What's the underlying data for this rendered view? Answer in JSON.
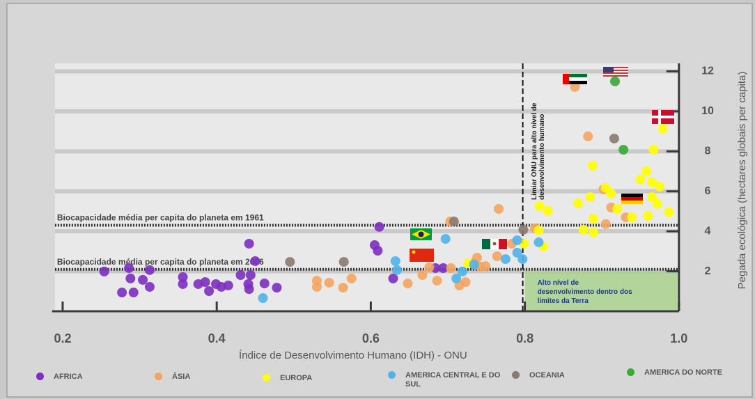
{
  "chart_data": {
    "type": "scatter",
    "xlabel": "Índice de Desenvolvimento Humano (IDH) - ONU",
    "ylabel": "Pegada ecológica (hectares globais per capita)",
    "xlim": [
      0.19,
      1.0
    ],
    "ylim": [
      0,
      12.4
    ],
    "xticks": [
      0.2,
      0.4,
      0.6,
      0.8,
      {
        "value": 1,
        "label": "1.0"
      }
    ],
    "yticks": [
      2,
      4,
      6,
      8,
      10,
      12
    ],
    "y_axis_side": "right",
    "reference_lines": [
      {
        "value": 4.3,
        "label": "Biocapacidade média per capita do planeta em 1961"
      },
      {
        "value": 2.1,
        "label": "Biocapacidade média per capita do planeta em 2006"
      }
    ],
    "threshold": {
      "value": 0.8,
      "label": "Limiar ONU para alto nível de desenvolvimento humano"
    },
    "highlight_box": {
      "label": "Alto nível de desenvolvimento dentro dos limites da Terra",
      "xlim": [
        0.8,
        1.0
      ],
      "ylim": [
        0,
        2
      ],
      "color": "#a9d18e"
    },
    "series": [
      {
        "name": "AFRICA",
        "color": "#7d2fc0",
        "x": [
          0.254,
          0.286,
          0.313,
          0.288,
          0.304,
          0.277,
          0.292,
          0.313,
          0.356,
          0.356,
          0.376,
          0.385,
          0.39,
          0.399,
          0.406,
          0.415,
          0.431,
          0.444,
          0.441,
          0.442,
          0.462,
          0.478,
          0.442,
          0.45,
          0.611,
          0.605,
          0.609,
          0.629,
          0.684,
          0.694
        ],
        "values": [
          1.99,
          2.16,
          2.06,
          1.64,
          1.57,
          0.94,
          0.94,
          1.22,
          1.71,
          1.36,
          1.36,
          1.46,
          1.01,
          1.36,
          1.22,
          1.29,
          1.81,
          1.81,
          1.36,
          1.11,
          1.39,
          1.18,
          3.38,
          2.51,
          4.22,
          3.31,
          3.03,
          1.64,
          2.16,
          2.16
        ]
      },
      {
        "name": "ÁSIA",
        "color": "#f4a460",
        "x": [
          0.53,
          0.546,
          0.53,
          0.564,
          0.575,
          0.648,
          0.667,
          0.676,
          0.686,
          0.704,
          0.715,
          0.723,
          0.733,
          0.738,
          0.742,
          0.749,
          0.764,
          0.703,
          0.766,
          0.783,
          0.813,
          0.865,
          0.882,
          0.902,
          0.912,
          0.905,
          0.931
        ],
        "values": [
          1.53,
          1.43,
          1.22,
          1.18,
          1.64,
          1.39,
          1.81,
          2.2,
          1.53,
          2.16,
          1.29,
          1.46,
          2.4,
          2.68,
          2.23,
          2.26,
          2.75,
          4.49,
          5.12,
          3.38,
          4.15,
          11.22,
          8.75,
          6.1,
          5.19,
          4.36,
          4.7
        ]
      },
      {
        "name": "EUROPA",
        "color": "#ffff00",
        "x": [
          0.819,
          0.83,
          0.869,
          0.885,
          0.905,
          0.912,
          0.92,
          0.889,
          0.876,
          0.889,
          0.824,
          0.799,
          0.818,
          0.888,
          0.967,
          0.979,
          0.958,
          0.95,
          0.965,
          0.975,
          0.96,
          0.965,
          0.972,
          0.987,
          0.939,
          0.726
        ],
        "values": [
          5.26,
          5.02,
          5.4,
          5.71,
          6.17,
          5.89,
          5.12,
          4.63,
          4.08,
          3.94,
          3.24,
          3.38,
          4.04,
          7.28,
          8.08,
          9.13,
          7.0,
          6.59,
          6.45,
          6.24,
          4.77,
          5.71,
          5.37,
          4.95,
          4.7,
          2.4
        ]
      },
      {
        "name": "AMERICA CENTRAL E DO SUL",
        "color": "#4fb4ea",
        "x": [
          0.46,
          0.632,
          0.634,
          0.697,
          0.711,
          0.719,
          0.734,
          0.775,
          0.79,
          0.79,
          0.818,
          0.797
        ],
        "values": [
          0.66,
          2.51,
          2.06,
          3.62,
          1.64,
          1.99,
          2.33,
          2.61,
          2.93,
          3.55,
          3.45,
          2.61
        ]
      },
      {
        "name": "OCEANIA",
        "color": "#8a7a70",
        "x": [
          0.495,
          0.565,
          0.708,
          0.798,
          0.916
        ],
        "values": [
          2.47,
          2.47,
          4.49,
          4.08,
          8.64
        ]
      },
      {
        "name": "AMERICA DO NORTE",
        "color": "#3aa935",
        "x": [
          0.917,
          0.928
        ],
        "values": [
          11.5,
          8.08
        ]
      }
    ]
  }
}
